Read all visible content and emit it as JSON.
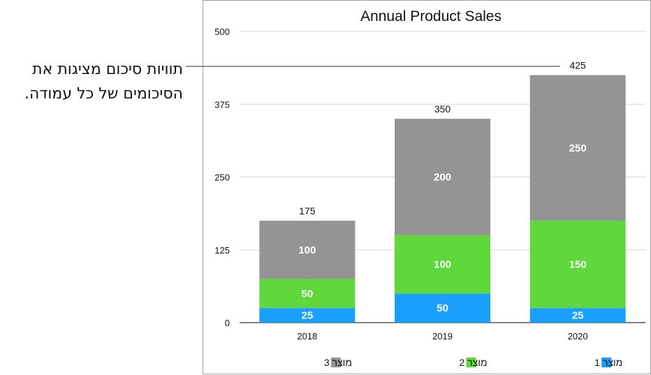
{
  "callout": {
    "text": "תוויות סיכום מציגות את הסיכומים של כל עמודה."
  },
  "chart_data": {
    "type": "bar",
    "stacked": true,
    "title": "Annual Product Sales",
    "categories": [
      "2018",
      "2019",
      "2020"
    ],
    "series": [
      {
        "name": "מוצר 1",
        "color": "#1a9fff",
        "values": [
          25,
          50,
          25
        ]
      },
      {
        "name": "מוצר 2",
        "color": "#5fd83b",
        "values": [
          50,
          100,
          150
        ]
      },
      {
        "name": "מוצר 3",
        "color": "#949494",
        "values": [
          100,
          200,
          250
        ]
      }
    ],
    "totals": [
      175,
      350,
      425
    ],
    "y_ticks": [
      0,
      125,
      250,
      375,
      500
    ],
    "ylim": [
      0,
      500
    ],
    "xlabel": "",
    "ylabel": "",
    "legend_position": "bottom"
  }
}
